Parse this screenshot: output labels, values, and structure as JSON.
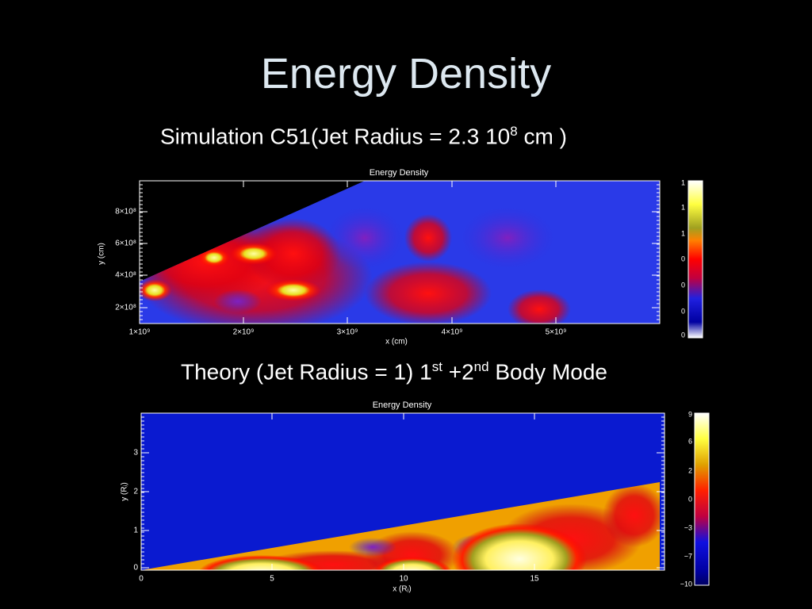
{
  "title": "Energy Density",
  "panels": [
    {
      "caption": [
        {
          "text": "Simulation C51(Jet Radius = 2.3 10",
          "sup": false
        },
        {
          "text": "8",
          "sup": true
        },
        {
          "text": " cm )",
          "sup": false
        }
      ],
      "plot_title": "Energy Density",
      "x_label": "x (cm)",
      "y_label": "y (cm)",
      "x_ticks": [
        "1×10⁹",
        "2×10⁹",
        "3×10⁹",
        "4×10⁹",
        "5×10⁹"
      ],
      "y_ticks": [
        "8×10⁸",
        "6×10⁸",
        "4×10⁸",
        "2×10⁸"
      ],
      "colorbar_ticks": [
        "1",
        "1",
        "1",
        "0",
        "0",
        "0",
        "0"
      ]
    },
    {
      "caption": [
        {
          "text": "Theory (Jet Radius = 1) 1",
          "sup": false
        },
        {
          "text": "st",
          "sup": true
        },
        {
          "text": " +2",
          "sup": false
        },
        {
          "text": "nd",
          "sup": true
        },
        {
          "text": " Body Mode",
          "sup": false
        }
      ],
      "plot_title": "Energy Density",
      "x_label": "x (Rⱼ)",
      "y_label": "y (Rⱼ)",
      "x_ticks": [
        "0",
        "5",
        "10",
        "15"
      ],
      "y_ticks": [
        "3",
        "2",
        "1",
        "0"
      ],
      "colorbar_ticks": [
        "9",
        "6",
        "2",
        "0",
        "−3",
        "−7",
        "−10"
      ]
    }
  ]
}
